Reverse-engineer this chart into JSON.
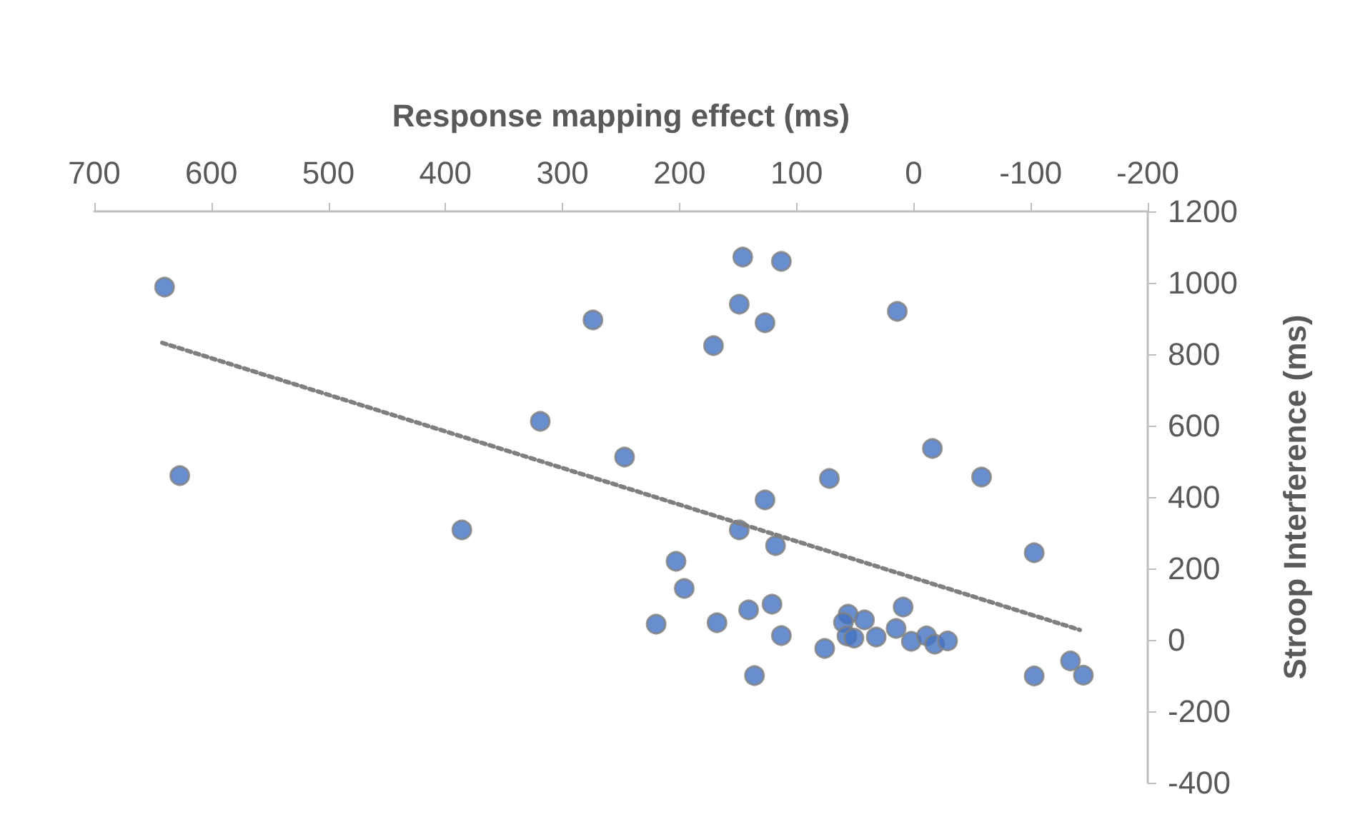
{
  "chart_data": {
    "type": "scatter",
    "xlabel": "Response mapping effect (ms)",
    "ylabel": "Stroop Interference (ms)",
    "xlim": [
      700,
      -200
    ],
    "xticks": [
      700,
      600,
      500,
      400,
      300,
      200,
      100,
      0,
      -100,
      -200
    ],
    "ylim": [
      -400,
      1200
    ],
    "yticks": [
      -400,
      -200,
      0,
      200,
      400,
      600,
      800,
      1000,
      1200
    ],
    "grid": false,
    "marker": "circle",
    "series": [
      {
        "color": "#4472c4",
        "x": [
          640,
          627,
          386,
          274,
          319,
          247,
          203,
          196,
          220,
          168,
          146,
          113,
          149,
          127,
          171,
          14,
          -16,
          72,
          -58,
          127,
          149,
          118,
          -103,
          141,
          121,
          113,
          76,
          136,
          56,
          60,
          42,
          57,
          51,
          32,
          9,
          15,
          2,
          -11,
          -18,
          -29,
          -103,
          -134,
          -145
        ],
        "values": [
          988,
          460,
          308,
          896,
          612,
          512,
          220,
          144,
          44,
          48,
          1072,
          1060,
          940,
          888,
          824,
          920,
          536,
          452,
          456,
          392,
          308,
          264,
          244,
          84,
          100,
          12,
          -24,
          -100,
          72,
          49,
          56,
          11,
          5,
          8,
          92,
          32,
          -4,
          11,
          -12,
          -3,
          -101,
          -59,
          -99
        ]
      },
      {
        "type": "line",
        "color": "#7f7f7f",
        "line_style": "dotted",
        "marker": "none",
        "x": [
          642,
          -142
        ],
        "values": [
          832,
          28
        ]
      }
    ]
  }
}
